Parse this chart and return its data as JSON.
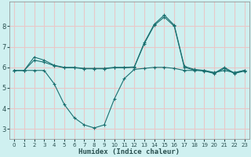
{
  "xlabel": "Humidex (Indice chaleur)",
  "bg_color": "#cff0f0",
  "grid_color": "#e8c8c8",
  "line_color": "#1a7070",
  "xlim": [
    -0.5,
    23.5
  ],
  "ylim": [
    2.5,
    9.2
  ],
  "xticks": [
    0,
    1,
    2,
    3,
    4,
    5,
    6,
    7,
    8,
    9,
    10,
    11,
    12,
    13,
    14,
    15,
    16,
    17,
    18,
    19,
    20,
    21,
    22,
    23
  ],
  "yticks": [
    3,
    4,
    5,
    6,
    7,
    8
  ],
  "line1_x": [
    0,
    1,
    2,
    3,
    4,
    5,
    6,
    7,
    8,
    9,
    10,
    11,
    12,
    13,
    14,
    15,
    16,
    17,
    18,
    19,
    20,
    21,
    22,
    23
  ],
  "line1_y": [
    5.85,
    5.85,
    6.5,
    6.35,
    6.1,
    6.0,
    6.0,
    5.95,
    5.95,
    5.95,
    6.0,
    6.0,
    6.02,
    7.2,
    8.1,
    8.55,
    8.05,
    6.05,
    5.9,
    5.85,
    5.72,
    6.0,
    5.72,
    5.85
  ],
  "line2_x": [
    0,
    1,
    2,
    3,
    4,
    5,
    6,
    7,
    8,
    9,
    10,
    11,
    12,
    13,
    14,
    15,
    16,
    17,
    18,
    19,
    20,
    21,
    22,
    23
  ],
  "line2_y": [
    5.85,
    5.85,
    5.85,
    5.85,
    5.2,
    4.2,
    3.55,
    3.2,
    3.05,
    3.2,
    4.45,
    5.45,
    5.9,
    5.95,
    6.0,
    6.0,
    5.95,
    5.85,
    5.85,
    5.85,
    5.75,
    5.85,
    5.75,
    5.85
  ],
  "line3_x": [
    0,
    1,
    2,
    3,
    4,
    5,
    6,
    7,
    8,
    9,
    10,
    11,
    12,
    13,
    14,
    15,
    16,
    17,
    18,
    19,
    20,
    21,
    22,
    23
  ],
  "line3_y": [
    5.85,
    5.85,
    6.35,
    6.25,
    6.08,
    5.98,
    5.98,
    5.93,
    5.93,
    5.93,
    5.98,
    5.98,
    6.0,
    7.15,
    8.05,
    8.45,
    8.0,
    6.0,
    5.87,
    5.82,
    5.7,
    5.95,
    5.7,
    5.82
  ]
}
